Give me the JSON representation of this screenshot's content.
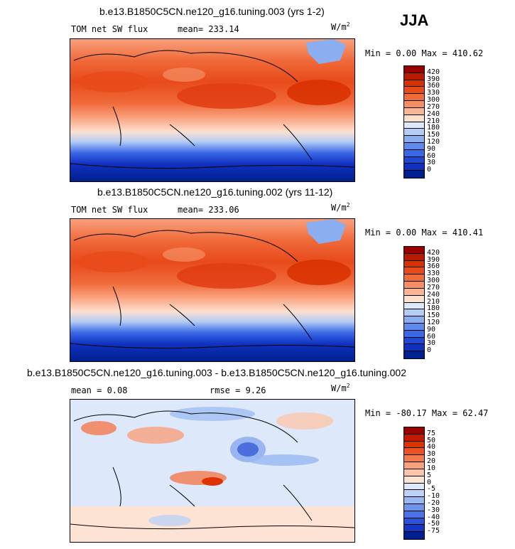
{
  "season": "JJA",
  "panels": [
    {
      "title": "b.e13.B1850C5CN.ne120_g16.tuning.003 (yrs 1-2)",
      "left_label": "TOM net SW flux",
      "mean_text": "mean= 233.14",
      "unit": "W/m",
      "unit_exp": "2",
      "minmax": "Min =   0.00 Max = 410.62"
    },
    {
      "title": "b.e13.B1850C5CN.ne120_g16.tuning.002 (yrs 11-12)",
      "left_label": "TOM net SW flux",
      "mean_text": "mean= 233.06",
      "unit": "W/m",
      "unit_exp": "2",
      "minmax": "Min =   0.00 Max = 410.41"
    },
    {
      "title": "b.e13.B1850C5CN.ne120_g16.tuning.003 - b.e13.B1850C5CN.ne120_g16.tuning.002",
      "left_label": "mean =    0.08",
      "mean_text": "rmse =    9.26",
      "unit": "W/m",
      "unit_exp": "2",
      "minmax": "Min = -80.17 Max =  62.47"
    }
  ],
  "colorbars": {
    "flux": {
      "labels": [
        "420",
        "390",
        "360",
        "330",
        "300",
        "270",
        "240",
        "210",
        "180",
        "150",
        "120",
        "90",
        "60",
        "30",
        "0"
      ],
      "colors": [
        "#990000",
        "#b81a00",
        "#d83000",
        "#e84a1a",
        "#f06a3a",
        "#f58e64",
        "#fab596",
        "#fde0d0",
        "#dce9fa",
        "#b4cdf5",
        "#8aaef0",
        "#5d8aec",
        "#3a68e6",
        "#1f47d8",
        "#1030c0",
        "#00208f"
      ]
    },
    "diff": {
      "labels": [
        "75",
        "50",
        "40",
        "30",
        "20",
        "10",
        "5",
        "0",
        "-5",
        "-10",
        "-20",
        "-30",
        "-40",
        "-50",
        "-75"
      ],
      "colors": [
        "#990000",
        "#c21a00",
        "#dc3300",
        "#ec5226",
        "#f47a4e",
        "#f9a07c",
        "#fcc4aa",
        "#fde3d4",
        "#dde9fa",
        "#bdd2f6",
        "#99b8f2",
        "#6e95ed",
        "#4a73e7",
        "#2c52dc",
        "#1535c2",
        "#00208f"
      ]
    }
  }
}
